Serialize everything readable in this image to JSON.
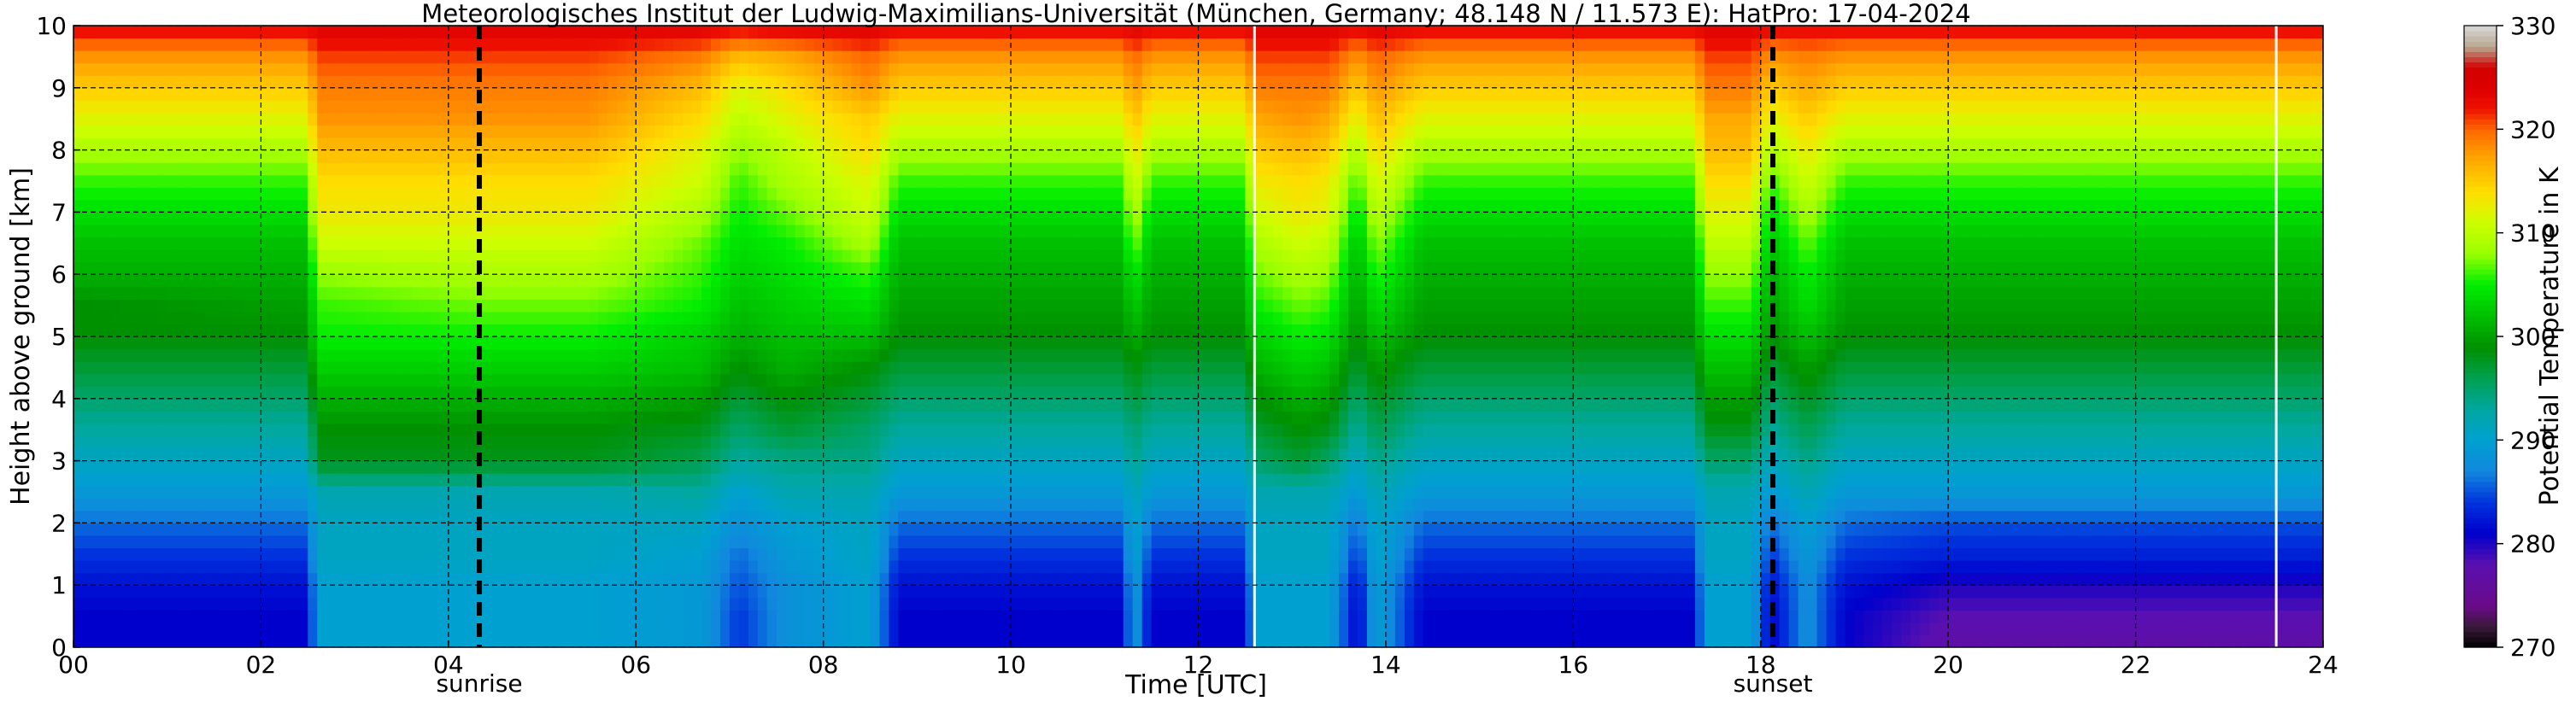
{
  "chart_data": {
    "type": "heatmap",
    "title": "Meteorologisches Institut der Ludwig-Maximilians-Universität (München, Germany; 48.148 N / 11.573 E):    HatPro: 17-04-2024",
    "xlabel": "Time [UTC]",
    "ylabel": "Height above ground [km]",
    "xlim": [
      0,
      24
    ],
    "ylim": [
      0,
      10
    ],
    "x_ticks": [
      0,
      2,
      4,
      6,
      8,
      10,
      12,
      14,
      16,
      18,
      20,
      22,
      24
    ],
    "x_tick_labels": [
      "00",
      "02",
      "04",
      "06",
      "08",
      "10",
      "12",
      "14",
      "16",
      "18",
      "20",
      "22",
      "24"
    ],
    "y_ticks": [
      0,
      1,
      2,
      3,
      4,
      5,
      6,
      7,
      8,
      9,
      10
    ],
    "y_tick_labels": [
      "0",
      "1",
      "2",
      "3",
      "4",
      "5",
      "6",
      "7",
      "8",
      "9",
      "10"
    ],
    "grid": true,
    "colorbar": {
      "label": "Potential Temperature in K",
      "range": [
        270,
        330
      ],
      "ticks": [
        270,
        280,
        290,
        300,
        310,
        320,
        330
      ],
      "tick_labels": [
        "270",
        "280",
        "290",
        "300",
        "310",
        "320",
        "330"
      ]
    },
    "colormap": [
      {
        "value": 270,
        "color": "#000000"
      },
      {
        "value": 272,
        "color": "#3a1a3a"
      },
      {
        "value": 274,
        "color": "#6a0a8a"
      },
      {
        "value": 278,
        "color": "#5a10b0"
      },
      {
        "value": 281,
        "color": "#0000cc"
      },
      {
        "value": 284,
        "color": "#0033dd"
      },
      {
        "value": 287,
        "color": "#1188dd"
      },
      {
        "value": 290,
        "color": "#00a0d0"
      },
      {
        "value": 293,
        "color": "#00a8a0"
      },
      {
        "value": 296,
        "color": "#00a050"
      },
      {
        "value": 299,
        "color": "#009000"
      },
      {
        "value": 302,
        "color": "#00c000"
      },
      {
        "value": 305,
        "color": "#00ee00"
      },
      {
        "value": 308,
        "color": "#99ff00"
      },
      {
        "value": 311,
        "color": "#ccff00"
      },
      {
        "value": 314,
        "color": "#ffdd00"
      },
      {
        "value": 317,
        "color": "#ffaa00"
      },
      {
        "value": 320,
        "color": "#ff6600"
      },
      {
        "value": 322,
        "color": "#ee1100"
      },
      {
        "value": 324,
        "color": "#dd0000"
      },
      {
        "value": 326,
        "color": "#d40000"
      },
      {
        "value": 328,
        "color": "#b8a890"
      },
      {
        "value": 330,
        "color": "#d8d8d8"
      }
    ],
    "heights_km": [
      0,
      0.5,
      1,
      1.5,
      2,
      2.5,
      3,
      3.5,
      4,
      4.5,
      5,
      5.5,
      6,
      6.5,
      7,
      7.5,
      8,
      8.5,
      9,
      9.5,
      10
    ],
    "profiles": [
      {
        "time": 0.0,
        "theta": [
          281,
          281,
          282,
          284,
          286,
          289,
          291,
          293,
          295,
          297,
          299,
          299,
          301,
          302,
          304,
          306,
          309,
          312,
          315,
          318,
          323
        ]
      },
      {
        "time": 2.5,
        "theta": [
          281,
          281,
          282,
          284,
          286,
          289,
          291,
          293,
          295,
          297,
          299,
          300,
          301,
          302,
          304,
          306,
          309,
          312,
          315,
          318,
          323
        ]
      },
      {
        "time": 2.6,
        "theta": [
          290,
          290,
          290,
          291,
          291,
          292,
          298,
          299,
          301,
          303,
          305,
          306,
          308,
          311,
          313,
          314,
          316,
          318,
          319,
          321,
          324
        ]
      },
      {
        "time": 4.3,
        "theta": [
          290,
          290,
          290,
          291,
          291,
          292,
          298,
          299,
          301,
          303,
          305,
          307,
          309,
          311,
          313,
          314,
          316,
          318,
          319,
          321,
          324
        ]
      },
      {
        "time": 5.5,
        "theta": [
          290,
          290,
          290,
          291,
          291,
          292,
          298,
          299,
          301,
          303,
          305,
          307,
          309,
          311,
          313,
          314,
          316,
          318,
          319,
          321,
          324
        ]
      },
      {
        "time": 6.7,
        "theta": [
          289,
          289,
          289,
          290,
          291,
          293,
          296,
          298,
          300,
          302,
          303,
          305,
          306,
          307,
          309,
          311,
          312,
          314,
          316,
          319,
          324
        ]
      },
      {
        "time": 7.1,
        "theta": [
          284,
          284,
          285,
          286,
          288,
          290,
          293,
          295,
          297,
          299,
          301,
          302,
          303,
          304,
          305,
          306,
          308,
          310,
          312,
          316,
          323
        ]
      },
      {
        "time": 7.6,
        "theta": [
          288,
          288,
          288,
          289,
          290,
          292,
          294,
          297,
          299,
          301,
          302,
          303,
          304,
          305,
          307,
          309,
          310,
          312,
          314,
          317,
          324
        ]
      },
      {
        "time": 8.5,
        "theta": [
          290,
          290,
          290,
          291,
          291,
          292,
          294,
          295,
          297,
          299,
          302,
          304,
          306,
          309,
          311,
          312,
          314,
          315,
          318,
          320,
          324
        ]
      },
      {
        "time": 8.8,
        "theta": [
          281,
          281,
          282,
          284,
          286,
          289,
          291,
          293,
          295,
          297,
          299,
          300,
          301,
          302,
          304,
          306,
          309,
          312,
          315,
          318,
          323
        ]
      },
      {
        "time": 11.2,
        "theta": [
          281,
          281,
          282,
          284,
          286,
          289,
          291,
          293,
          295,
          297,
          299,
          300,
          301,
          302,
          304,
          306,
          309,
          312,
          315,
          318,
          323
        ]
      },
      {
        "time": 11.3,
        "theta": [
          290,
          290,
          290,
          291,
          291,
          292,
          294,
          295,
          297,
          299,
          301,
          303,
          305,
          308,
          310,
          312,
          314,
          316,
          318,
          320,
          324
        ]
      },
      {
        "time": 11.5,
        "theta": [
          281,
          281,
          282,
          284,
          286,
          289,
          291,
          293,
          295,
          297,
          299,
          300,
          301,
          302,
          304,
          306,
          309,
          312,
          315,
          318,
          323
        ]
      },
      {
        "time": 12.5,
        "theta": [
          281,
          281,
          282,
          284,
          286,
          289,
          291,
          293,
          295,
          297,
          299,
          300,
          301,
          302,
          304,
          306,
          309,
          312,
          315,
          318,
          323
        ]
      },
      {
        "time": 12.6,
        "theta": [
          290,
          290,
          290,
          291,
          291,
          292,
          295,
          297,
          299,
          301,
          303,
          305,
          307,
          309,
          311,
          313,
          315,
          317,
          319,
          321,
          324
        ]
      },
      {
        "time": 13.1,
        "theta": [
          290,
          290,
          290,
          291,
          291,
          292,
          297,
          299,
          301,
          303,
          305,
          307,
          309,
          311,
          313,
          314,
          316,
          318,
          319,
          321,
          324
        ]
      },
      {
        "time": 13.4,
        "theta": [
          290,
          290,
          290,
          291,
          291,
          292,
          295,
          298,
          300,
          302,
          304,
          306,
          308,
          310,
          312,
          313,
          315,
          317,
          319,
          321,
          324
        ]
      },
      {
        "time": 13.7,
        "theta": [
          281,
          281,
          282,
          284,
          286,
          289,
          291,
          293,
          295,
          297,
          299,
          300,
          301,
          302,
          304,
          306,
          309,
          312,
          315,
          318,
          323
        ]
      },
      {
        "time": 13.9,
        "theta": [
          290,
          290,
          290,
          291,
          291,
          292,
          294,
          296,
          298,
          300,
          302,
          304,
          306,
          308,
          310,
          312,
          314,
          316,
          318,
          320,
          324
        ]
      },
      {
        "time": 14.4,
        "theta": [
          281,
          281,
          282,
          284,
          286,
          289,
          291,
          293,
          295,
          297,
          299,
          300,
          301,
          302,
          304,
          306,
          309,
          312,
          315,
          318,
          323
        ]
      },
      {
        "time": 17.3,
        "theta": [
          281,
          281,
          282,
          284,
          286,
          289,
          291,
          293,
          295,
          297,
          299,
          300,
          301,
          302,
          304,
          306,
          309,
          312,
          315,
          318,
          323
        ]
      },
      {
        "time": 17.4,
        "theta": [
          290,
          290,
          290,
          291,
          291,
          292,
          295,
          298,
          300,
          302,
          304,
          306,
          308,
          310,
          312,
          314,
          316,
          317,
          319,
          321,
          324
        ]
      },
      {
        "time": 17.9,
        "theta": [
          290,
          290,
          290,
          291,
          291,
          292,
          295,
          298,
          300,
          302,
          304,
          306,
          308,
          310,
          312,
          314,
          316,
          317,
          319,
          321,
          324
        ]
      },
      {
        "time": 18.1,
        "theta": [
          281,
          281,
          282,
          284,
          286,
          289,
          291,
          293,
          295,
          297,
          299,
          300,
          301,
          302,
          304,
          306,
          309,
          312,
          315,
          318,
          323
        ]
      },
      {
        "time": 18.5,
        "theta": [
          288,
          288,
          288,
          289,
          290,
          292,
          294,
          296,
          298,
          300,
          302,
          304,
          305,
          307,
          309,
          311,
          313,
          315,
          317,
          319,
          323
        ]
      },
      {
        "time": 18.9,
        "theta": [
          281,
          281,
          282,
          284,
          286,
          289,
          291,
          293,
          295,
          297,
          299,
          300,
          301,
          302,
          304,
          306,
          309,
          312,
          315,
          318,
          323
        ]
      },
      {
        "time": 20.0,
        "theta": [
          277,
          278,
          280,
          283,
          285,
          289,
          291,
          293,
          295,
          297,
          299,
          300,
          301,
          302,
          304,
          306,
          309,
          312,
          315,
          318,
          323
        ]
      },
      {
        "time": 24.0,
        "theta": [
          277,
          278,
          280,
          283,
          285,
          289,
          291,
          293,
          295,
          297,
          299,
          300,
          301,
          302,
          304,
          306,
          309,
          312,
          315,
          318,
          323
        ]
      }
    ],
    "event_markers": [
      {
        "label": "sunrise",
        "time": 4.33
      },
      {
        "label": "sunset",
        "time": 18.13
      }
    ],
    "data_gaps": [
      12.6,
      23.5
    ]
  }
}
